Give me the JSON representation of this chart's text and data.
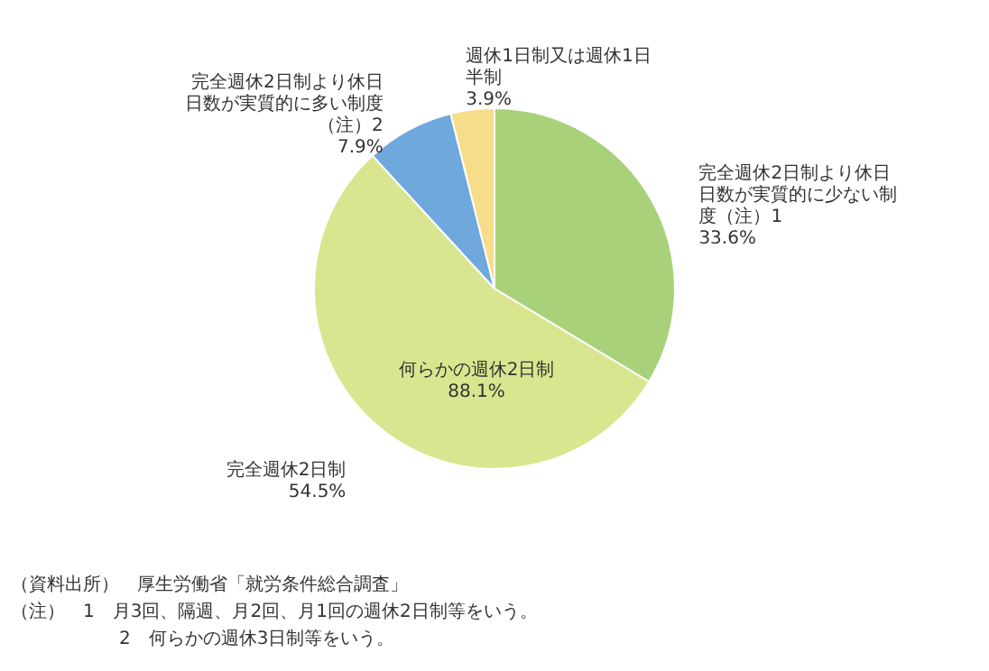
{
  "chart_data": {
    "type": "pie",
    "categories": [
      "完全週休2日制より休日日数が実質的に少ない制度（注）1",
      "完全週休2日制",
      "完全週休2日制より休日日数が実質的に多い制度（注）2",
      "週休1日制又は週休1日半制"
    ],
    "values": [
      33.6,
      54.5,
      7.9,
      3.9
    ],
    "colors": [
      "#a9d17a",
      "#d9e68f",
      "#6fa8dc",
      "#f7dc8a"
    ],
    "value_labels": [
      "33.6%",
      "54.5%",
      "7.9%",
      "3.9%"
    ],
    "annotations": [
      "何らかの週休2日制 88.1%",
      "（資料出所）　厚生労働省「就労条件総合調査」",
      "（注）　1　月3回、隔週、月2回、月1回の週休2日制等をいう。",
      "2　何らかの週休3日制等をいう。"
    ]
  }
}
